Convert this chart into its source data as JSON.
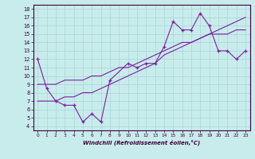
{
  "xlabel": "Windchill (Refroidissement éolien,°C)",
  "background_color": "#c8ecec",
  "line_color": "#7b1fa2",
  "grid_color": "#b0d8d8",
  "xlim": [
    -0.5,
    23.5
  ],
  "ylim": [
    3.5,
    18.5
  ],
  "xticks": [
    0,
    1,
    2,
    3,
    4,
    5,
    6,
    7,
    8,
    9,
    10,
    11,
    12,
    13,
    14,
    15,
    16,
    17,
    18,
    19,
    20,
    21,
    22,
    23
  ],
  "yticks": [
    4,
    5,
    6,
    7,
    8,
    9,
    10,
    11,
    12,
    13,
    14,
    15,
    16,
    17,
    18
  ],
  "line1_x": [
    0,
    1,
    2,
    3,
    4,
    5,
    6,
    7,
    8,
    10,
    11,
    12,
    13,
    14,
    15,
    16,
    17,
    18,
    19,
    20,
    21,
    22,
    23
  ],
  "line1_y": [
    12,
    8.5,
    7,
    6.5,
    6.5,
    4.5,
    5.5,
    4.5,
    9.5,
    11.5,
    11,
    11.5,
    11.5,
    13.5,
    16.5,
    15.5,
    15.5,
    17.5,
    16,
    13,
    13,
    12,
    13
  ],
  "line2_x": [
    0,
    1,
    2,
    3,
    4,
    5,
    6,
    7,
    8,
    9,
    10,
    11,
    12,
    13,
    14,
    15,
    16,
    17,
    18,
    19,
    20,
    21,
    22,
    23
  ],
  "line2_y": [
    9,
    9,
    9,
    9.5,
    9.5,
    9.5,
    10,
    10,
    10.5,
    11,
    11,
    11.5,
    12,
    12.5,
    13,
    13.5,
    14,
    14,
    14.5,
    15,
    15,
    15,
    15.5,
    15.5
  ],
  "line3_x": [
    0,
    1,
    2,
    3,
    4,
    5,
    6,
    7,
    8,
    9,
    10,
    11,
    12,
    13,
    14,
    15,
    16,
    17,
    18,
    19,
    20,
    21,
    22,
    23
  ],
  "line3_y": [
    7,
    7,
    7,
    7.5,
    7.5,
    8,
    8,
    8.5,
    9,
    9.5,
    10,
    10.5,
    11,
    11.5,
    12.5,
    13,
    13.5,
    14,
    14.5,
    15,
    15.5,
    16,
    16.5,
    17
  ]
}
